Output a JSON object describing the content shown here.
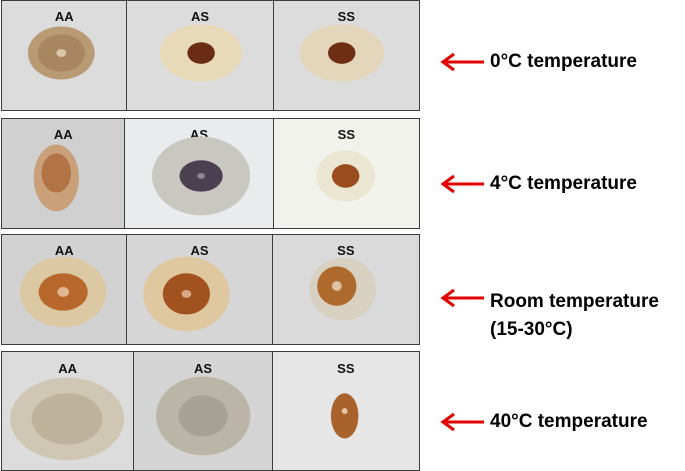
{
  "rows": [
    {
      "panels": [
        "AA",
        "AS",
        "SS"
      ],
      "label": "0°C temperature"
    },
    {
      "panels": [
        "AA",
        "AS",
        "SS"
      ],
      "label": "4°C temperature"
    },
    {
      "panels": [
        "AA",
        "AS",
        "SS"
      ],
      "label_line1": "Room temperature",
      "label_line2": "(15-30°C)"
    },
    {
      "panels": [
        "AA",
        "AS",
        "SS"
      ],
      "label": "40°C temperature"
    }
  ],
  "colors": {
    "arrow": "#e00000",
    "border": "#3c3c3c"
  }
}
